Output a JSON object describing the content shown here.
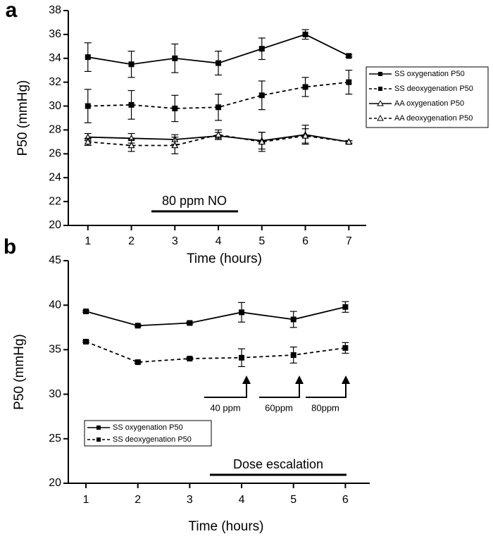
{
  "chart_data": [
    {
      "type": "line",
      "panel_label": "a",
      "ylabel": "P50 (mmHg)",
      "xlabel": "Time (hours)",
      "x": [
        1,
        2,
        3,
        4,
        5,
        6,
        7
      ],
      "xlim": [
        0.55,
        7.4
      ],
      "xticks": [
        1,
        2,
        3,
        4,
        5,
        6,
        7
      ],
      "ylim": [
        20,
        38
      ],
      "yticks": [
        20,
        22,
        24,
        26,
        28,
        30,
        32,
        34,
        36,
        38
      ],
      "series": [
        {
          "name": "SS oxygenation P50",
          "color": "#000000",
          "dash": "solid",
          "marker": "square",
          "values": [
            34.1,
            33.5,
            34.0,
            33.6,
            34.8,
            36.0,
            34.2
          ],
          "errors": [
            1.2,
            1.1,
            1.2,
            1.0,
            0.9,
            0.4,
            0.1
          ]
        },
        {
          "name": "SS deoxygenation P50",
          "color": "#000000",
          "dash": "dashed",
          "marker": "square",
          "values": [
            30.0,
            30.1,
            29.8,
            29.9,
            30.9,
            31.6,
            32.0
          ],
          "errors": [
            1.4,
            1.2,
            1.1,
            1.1,
            1.2,
            0.8,
            1.0
          ]
        },
        {
          "name": "AA oxygenation P50",
          "color": "#000000",
          "dash": "solid",
          "marker": "triangle",
          "values": [
            27.4,
            27.3,
            27.2,
            27.5,
            27.1,
            27.6,
            27.0
          ],
          "errors": [
            0.3,
            0.4,
            0.4,
            0.3,
            0.7,
            0.8,
            0.1
          ]
        },
        {
          "name": "AA deoxygenation P50",
          "color": "#000000",
          "dash": "dashed",
          "marker": "triangle",
          "values": [
            27.0,
            26.7,
            26.7,
            27.6,
            27.0,
            27.5,
            27.0
          ],
          "errors": [
            0.3,
            0.5,
            0.7,
            0.4,
            0.8,
            0.6,
            0.1
          ]
        }
      ],
      "annotations": [
        "80 ppm NO"
      ]
    },
    {
      "type": "line",
      "panel_label": "b",
      "ylabel": "P50 (mmHg)",
      "xlabel": "Time (hours)",
      "x": [
        1,
        2,
        3,
        4,
        5,
        6
      ],
      "xlim": [
        0.66,
        6.47
      ],
      "xticks": [
        1,
        2,
        3,
        4,
        5,
        6
      ],
      "ylim": [
        20,
        45
      ],
      "yticks": [
        20,
        25,
        30,
        35,
        40,
        45
      ],
      "series": [
        {
          "name": "SS oxygenation P50",
          "color": "#000000",
          "dash": "solid",
          "marker": "square",
          "values": [
            39.3,
            37.7,
            38.0,
            39.2,
            38.4,
            39.8
          ],
          "errors": [
            0.1,
            0.1,
            0.1,
            1.1,
            0.9,
            0.6
          ]
        },
        {
          "name": "SS deoxygenation P50",
          "color": "#000000",
          "dash": "dashed",
          "marker": "square",
          "values": [
            35.9,
            33.6,
            34.0,
            34.1,
            34.4,
            35.2
          ],
          "errors": [
            0.1,
            0.1,
            0.1,
            1.0,
            0.9,
            0.6
          ]
        }
      ],
      "annotations": [
        "40 ppm",
        "60ppm",
        "80ppm",
        "Dose escalation"
      ]
    }
  ]
}
